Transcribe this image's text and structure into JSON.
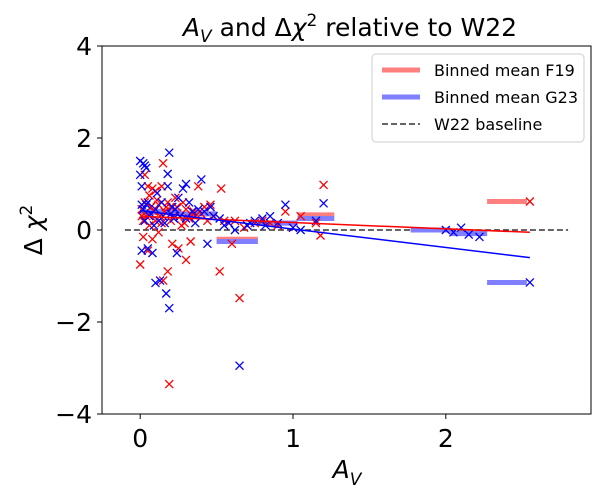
{
  "chart_data": {
    "type": "scatter",
    "title": "A_V and Δχ² relative to W22",
    "xlabel": "A_V",
    "ylabel": "Δ χ²",
    "xlim": [
      -0.25,
      2.95
    ],
    "ylim": [
      -4,
      4
    ],
    "xticks": [
      0,
      1,
      2
    ],
    "yticks": [
      -4,
      -2,
      0,
      2,
      4
    ],
    "ytick_labels": [
      "−4",
      "−2",
      "0",
      "2",
      "4"
    ],
    "grid": false,
    "legend_position": "top-right",
    "legend": [
      {
        "label": "Binned mean F19",
        "color": "#ff7f7f",
        "style": "thick-line"
      },
      {
        "label": "Binned mean G23",
        "color": "#7f7fff",
        "style": "thick-line"
      },
      {
        "label": "W22 baseline",
        "color": "#333333",
        "style": "dashed"
      }
    ],
    "baseline": {
      "y": 0,
      "x": [
        -0.1,
        2.8
      ],
      "color": "#333333"
    },
    "series": [
      {
        "name": "F19",
        "color": "#ff0000",
        "points": [
          [
            0.0,
            -0.75
          ],
          [
            0.01,
            0.3
          ],
          [
            0.01,
            0.45
          ],
          [
            0.02,
            0.2
          ],
          [
            0.02,
            -0.15
          ],
          [
            0.03,
            1.2
          ],
          [
            0.03,
            0.6
          ],
          [
            0.04,
            0.3
          ],
          [
            0.05,
            0.95
          ],
          [
            0.05,
            -0.45
          ],
          [
            0.06,
            0.75
          ],
          [
            0.06,
            0.1
          ],
          [
            0.07,
            0.5
          ],
          [
            0.08,
            0.9
          ],
          [
            0.08,
            -0.2
          ],
          [
            0.09,
            0.4
          ],
          [
            0.1,
            0.85
          ],
          [
            0.1,
            0.2
          ],
          [
            0.11,
            0.65
          ],
          [
            0.12,
            0.55
          ],
          [
            0.12,
            -0.05
          ],
          [
            0.13,
            0.3
          ],
          [
            0.14,
            0.95
          ],
          [
            0.14,
            0.15
          ],
          [
            0.15,
            1.45
          ],
          [
            0.15,
            -1.1
          ],
          [
            0.16,
            0.4
          ],
          [
            0.17,
            0.5
          ],
          [
            0.18,
            -0.9
          ],
          [
            0.18,
            0.6
          ],
          [
            0.19,
            -3.35
          ],
          [
            0.2,
            0.5
          ],
          [
            0.2,
            0.2
          ],
          [
            0.21,
            -0.3
          ],
          [
            0.22,
            0.3
          ],
          [
            0.23,
            0.7
          ],
          [
            0.24,
            0.5
          ],
          [
            0.25,
            -0.4
          ],
          [
            0.26,
            0.3
          ],
          [
            0.27,
            0.1
          ],
          [
            0.28,
            0.6
          ],
          [
            0.29,
            0.15
          ],
          [
            0.3,
            0.45
          ],
          [
            0.3,
            -0.65
          ],
          [
            0.32,
            0.25
          ],
          [
            0.33,
            -0.25
          ],
          [
            0.35,
            0.4
          ],
          [
            0.36,
            0.3
          ],
          [
            0.38,
            0.95
          ],
          [
            0.4,
            0.35
          ],
          [
            0.42,
            0.5
          ],
          [
            0.44,
            0.2
          ],
          [
            0.46,
            0.55
          ],
          [
            0.48,
            0.3
          ],
          [
            0.52,
            -0.9
          ],
          [
            0.53,
            0.9
          ],
          [
            0.55,
            0.2
          ],
          [
            0.58,
            0.15
          ],
          [
            0.6,
            -0.3
          ],
          [
            0.62,
            0.2
          ],
          [
            0.65,
            -1.48
          ],
          [
            0.68,
            0.05
          ],
          [
            0.7,
            0.1
          ],
          [
            0.75,
            0.15
          ],
          [
            0.8,
            0.2
          ],
          [
            0.85,
            0.15
          ],
          [
            0.9,
            0.1
          ],
          [
            0.95,
            0.4
          ],
          [
            1.0,
            0.05
          ],
          [
            1.05,
            0.3
          ],
          [
            1.15,
            0.15
          ],
          [
            1.18,
            -0.12
          ],
          [
            1.2,
            0.98
          ],
          [
            2.55,
            0.62
          ]
        ],
        "fit": {
          "x": [
            0.0,
            2.55
          ],
          "y": [
            0.3,
            -0.05
          ]
        },
        "bins": [
          {
            "x": [
              0.0,
              0.27
            ],
            "y": 0.38
          },
          {
            "x": [
              0.27,
              0.5
            ],
            "y": 0.35
          },
          {
            "x": [
              0.5,
              0.77
            ],
            "y": -0.2
          },
          {
            "x": [
              0.77,
              1.03
            ],
            "y": 0.15
          },
          {
            "x": [
              1.03,
              1.27
            ],
            "y": 0.33
          },
          {
            "x": [
              1.77,
              2.03
            ],
            "y": 0.0
          },
          {
            "x": [
              2.03,
              2.27
            ],
            "y": -0.07
          },
          {
            "x": [
              2.27,
              2.53
            ],
            "y": 0.62
          }
        ]
      },
      {
        "name": "G23",
        "color": "#0000ff",
        "points": [
          [
            0.0,
            1.5
          ],
          [
            0.0,
            1.2
          ],
          [
            0.01,
            0.95
          ],
          [
            0.01,
            0.55
          ],
          [
            0.01,
            -0.45
          ],
          [
            0.02,
            1.45
          ],
          [
            0.02,
            0.45
          ],
          [
            0.03,
            1.4
          ],
          [
            0.03,
            0.2
          ],
          [
            0.04,
            1.35
          ],
          [
            0.04,
            0.55
          ],
          [
            0.05,
            0.6
          ],
          [
            0.05,
            -0.4
          ],
          [
            0.06,
            0.3
          ],
          [
            0.07,
            0.35
          ],
          [
            0.08,
            -0.5
          ],
          [
            0.09,
            0.1
          ],
          [
            0.1,
            0.45
          ],
          [
            0.1,
            -1.15
          ],
          [
            0.11,
            0.8
          ],
          [
            0.12,
            0.2
          ],
          [
            0.13,
            -1.1
          ],
          [
            0.14,
            0.6
          ],
          [
            0.15,
            0.3
          ],
          [
            0.16,
            0.15
          ],
          [
            0.17,
            -1.38
          ],
          [
            0.18,
            1.22
          ],
          [
            0.18,
            0.95
          ],
          [
            0.19,
            1.68
          ],
          [
            0.19,
            -1.7
          ],
          [
            0.2,
            0.35
          ],
          [
            0.21,
            0.5
          ],
          [
            0.22,
            0.25
          ],
          [
            0.23,
            0.45
          ],
          [
            0.24,
            -0.5
          ],
          [
            0.25,
            0.7
          ],
          [
            0.26,
            0.3
          ],
          [
            0.28,
            0.9
          ],
          [
            0.3,
            1.0
          ],
          [
            0.3,
            0.25
          ],
          [
            0.32,
            0.6
          ],
          [
            0.34,
            0.4
          ],
          [
            0.36,
            0.15
          ],
          [
            0.38,
            0.45
          ],
          [
            0.4,
            1.1
          ],
          [
            0.42,
            0.4
          ],
          [
            0.44,
            -0.3
          ],
          [
            0.46,
            0.5
          ],
          [
            0.48,
            0.3
          ],
          [
            0.52,
            0.25
          ],
          [
            0.55,
            0.1
          ],
          [
            0.58,
            0.15
          ],
          [
            0.62,
            0.0
          ],
          [
            0.65,
            -2.95
          ],
          [
            0.7,
            0.1
          ],
          [
            0.72,
            0.15
          ],
          [
            0.75,
            0.2
          ],
          [
            0.8,
            0.25
          ],
          [
            0.82,
            0.1
          ],
          [
            0.85,
            0.3
          ],
          [
            0.9,
            0.15
          ],
          [
            0.95,
            0.55
          ],
          [
            1.0,
            0.05
          ],
          [
            1.05,
            0.0
          ],
          [
            1.15,
            0.2
          ],
          [
            1.2,
            0.58
          ],
          [
            2.0,
            0.0
          ],
          [
            2.05,
            -0.05
          ],
          [
            2.1,
            0.05
          ],
          [
            2.15,
            -0.1
          ],
          [
            2.22,
            -0.15
          ],
          [
            2.55,
            -1.14
          ]
        ],
        "fit": {
          "x": [
            0.0,
            2.55
          ],
          "y": [
            0.42,
            -0.6
          ]
        },
        "bins": [
          {
            "x": [
              0.0,
              0.27
            ],
            "y": 0.4
          },
          {
            "x": [
              0.27,
              0.5
            ],
            "y": 0.35
          },
          {
            "x": [
              0.5,
              0.77
            ],
            "y": -0.25
          },
          {
            "x": [
              0.77,
              1.03
            ],
            "y": 0.15
          },
          {
            "x": [
              1.03,
              1.27
            ],
            "y": 0.25
          },
          {
            "x": [
              1.77,
              2.03
            ],
            "y": 0.0
          },
          {
            "x": [
              2.03,
              2.27
            ],
            "y": -0.08
          },
          {
            "x": [
              2.27,
              2.53
            ],
            "y": -1.14
          }
        ]
      }
    ]
  }
}
